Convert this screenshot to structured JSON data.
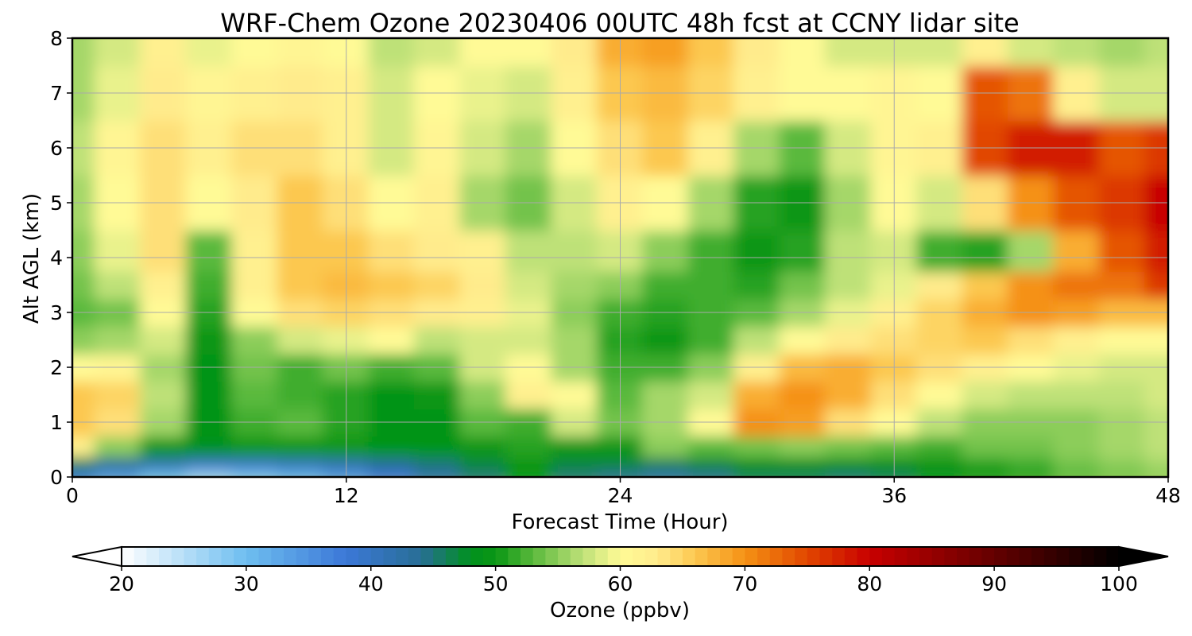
{
  "chart_data": {
    "type": "heatmap",
    "title": "WRF-Chem Ozone  20230406 00UTC 48h fcst at CCNY lidar site",
    "xlabel": "Forecast Time (Hour)",
    "ylabel": "Alt AGL (km)",
    "xlim": [
      0,
      48
    ],
    "ylim": [
      0,
      8
    ],
    "xticks": [
      "0",
      "12",
      "24",
      "36",
      "48"
    ],
    "yticks": [
      "0",
      "1",
      "2",
      "3",
      "4",
      "5",
      "6",
      "7",
      "8"
    ],
    "grid": true,
    "colorbar": {
      "label": "Ozone  (ppbv)",
      "range": [
        20,
        100
      ],
      "ticks": [
        "20",
        "30",
        "40",
        "50",
        "60",
        "70",
        "80",
        "90",
        "100"
      ],
      "extend": "both"
    },
    "x": [
      0,
      2,
      4,
      6,
      8,
      10,
      12,
      14,
      16,
      18,
      20,
      22,
      24,
      26,
      28,
      30,
      32,
      34,
      36,
      38,
      40,
      42,
      44,
      46,
      48
    ],
    "y": [
      0,
      0.25,
      0.5,
      1,
      1.5,
      2,
      2.5,
      3,
      3.5,
      4,
      5,
      6,
      7,
      8
    ],
    "z": [
      [
        38,
        34,
        30,
        27,
        29,
        31,
        34,
        38,
        42,
        45,
        49,
        45,
        44,
        42,
        44,
        46,
        46,
        45,
        46,
        48,
        50,
        51,
        53,
        54,
        55
      ],
      [
        46,
        44,
        42,
        40,
        40,
        41,
        42,
        44,
        45,
        47,
        50,
        47,
        47,
        46,
        47,
        48,
        48,
        48,
        48,
        50,
        51,
        52,
        54,
        55,
        56
      ],
      [
        62,
        55,
        50,
        48,
        50,
        50,
        50,
        49,
        49,
        50,
        51,
        50,
        50,
        55,
        53,
        54,
        55,
        54,
        53,
        52,
        54,
        54,
        55,
        56,
        57
      ],
      [
        66,
        64,
        56,
        49,
        52,
        53,
        51,
        49,
        49,
        53,
        52,
        58,
        54,
        56,
        60,
        70,
        69,
        64,
        60,
        57,
        55,
        55,
        55,
        56,
        57
      ],
      [
        66,
        65,
        57,
        49,
        53,
        52,
        51,
        49,
        50,
        55,
        62,
        60,
        53,
        56,
        58,
        68,
        70,
        68,
        64,
        60,
        58,
        57,
        57,
        57,
        58
      ],
      [
        60,
        61,
        56,
        49,
        54,
        52,
        54,
        52,
        53,
        58,
        60,
        56,
        52,
        52,
        55,
        62,
        67,
        68,
        66,
        64,
        62,
        60,
        59,
        58,
        58
      ],
      [
        55,
        56,
        58,
        50,
        55,
        58,
        59,
        60,
        57,
        58,
        58,
        56,
        51,
        50,
        52,
        57,
        60,
        63,
        64,
        65,
        66,
        64,
        62,
        60,
        60
      ],
      [
        53,
        54,
        60,
        51,
        60,
        64,
        65,
        64,
        63,
        62,
        59,
        55,
        52,
        51,
        52,
        53,
        56,
        59,
        62,
        65,
        68,
        70,
        69,
        67,
        67
      ],
      [
        54,
        57,
        62,
        52,
        62,
        66,
        67,
        66,
        65,
        63,
        58,
        56,
        55,
        52,
        52,
        51,
        54,
        57,
        59,
        63,
        66,
        70,
        72,
        72,
        76
      ],
      [
        55,
        59,
        64,
        53,
        62,
        66,
        66,
        64,
        63,
        62,
        57,
        57,
        58,
        55,
        52,
        50,
        51,
        57,
        58,
        52,
        51,
        56,
        68,
        74,
        78
      ],
      [
        56,
        60,
        64,
        60,
        63,
        66,
        64,
        60,
        62,
        56,
        54,
        58,
        62,
        60,
        56,
        51,
        50,
        56,
        60,
        58,
        64,
        70,
        74,
        76,
        80
      ],
      [
        57,
        61,
        64,
        62,
        64,
        64,
        62,
        58,
        61,
        58,
        56,
        60,
        64,
        66,
        62,
        56,
        53,
        58,
        61,
        62,
        75,
        78,
        78,
        74,
        76
      ],
      [
        56,
        59,
        63,
        61,
        62,
        63,
        62,
        58,
        60,
        59,
        58,
        62,
        66,
        67,
        65,
        62,
        60,
        60,
        61,
        60,
        74,
        72,
        62,
        58,
        58
      ],
      [
        56,
        58,
        62,
        59,
        60,
        61,
        60,
        57,
        58,
        60,
        60,
        63,
        68,
        69,
        66,
        63,
        60,
        58,
        58,
        58,
        62,
        58,
        57,
        56,
        57
      ]
    ]
  }
}
